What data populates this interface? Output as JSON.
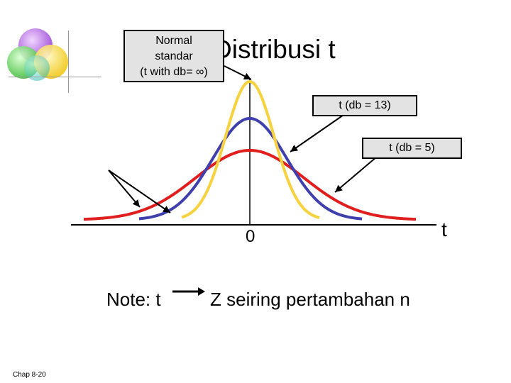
{
  "slide": {
    "title": "Distribusi t",
    "footer": "Chap 8-20"
  },
  "callouts": {
    "normal": [
      "Normal",
      "standar",
      "(t with db= ∞)"
    ],
    "t13": "t  (db = 13)",
    "t5": "t  (db = 5)"
  },
  "axis": {
    "label": "t",
    "zero": "0"
  },
  "note": {
    "prefix": "Note:  t",
    "suffix": "Z  seiring pertambahan n"
  },
  "colors": {
    "normal": "#f7d23e",
    "t13": "#3f3fae",
    "t5": "#e01e1e",
    "axis": "#000000"
  }
}
